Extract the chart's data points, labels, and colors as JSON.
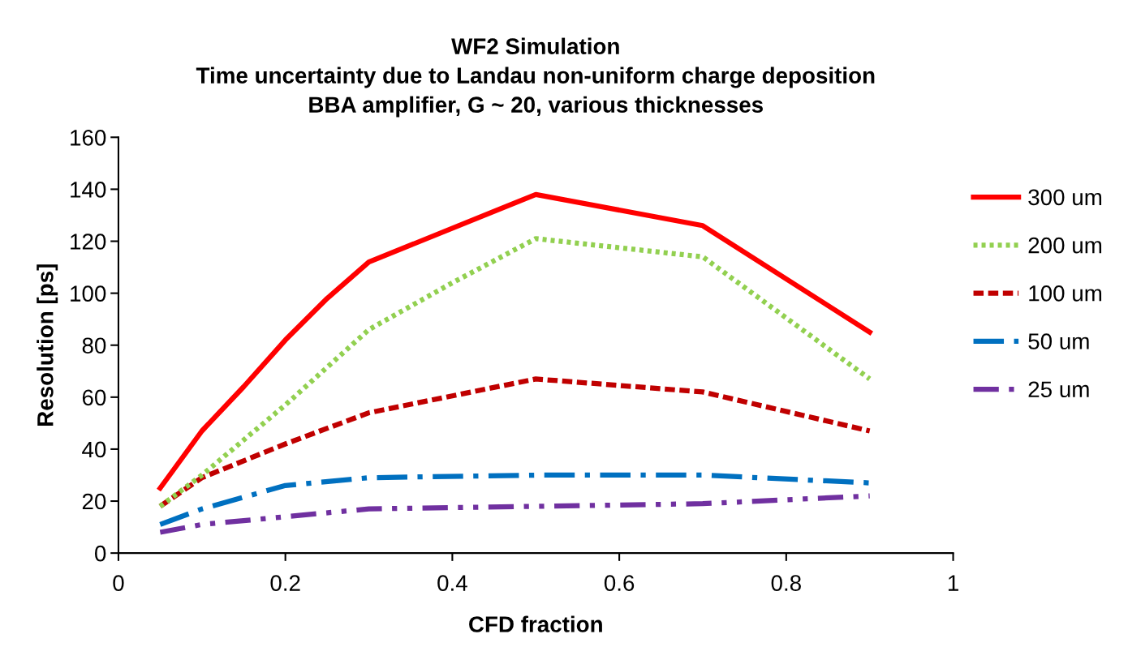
{
  "chart_data": {
    "type": "line",
    "title": "WF2 Simulation\nTime uncertainty due to Landau non-uniform charge deposition\nBBA amplifier, G ~ 20, various thicknesses",
    "xlabel": "CFD fraction",
    "ylabel": "Resolution [ps]",
    "xlim": [
      0,
      1
    ],
    "xticks": [
      0,
      0.2,
      0.4,
      0.6,
      0.8,
      1
    ],
    "ylim": [
      0,
      160
    ],
    "yticks": [
      0,
      20,
      40,
      60,
      80,
      100,
      120,
      140,
      160
    ],
    "grid": false,
    "legend": "right",
    "marker": "none",
    "series": [
      {
        "name": "300 um",
        "color": "#ff0000",
        "line_style": "solid",
        "x": [
          0.05,
          0.1,
          0.15,
          0.2,
          0.25,
          0.3,
          0.5,
          0.7,
          0.9
        ],
        "values": [
          25,
          47,
          64,
          82,
          98,
          112,
          138,
          126,
          85
        ]
      },
      {
        "name": "200 um",
        "color": "#92d050",
        "line_style": "dotted",
        "x": [
          0.05,
          0.1,
          0.2,
          0.3,
          0.4,
          0.5,
          0.7,
          0.9
        ],
        "values": [
          18,
          30,
          57,
          86,
          104,
          121,
          114,
          67
        ]
      },
      {
        "name": "100 um",
        "color": "#c00000",
        "line_style": "dashed",
        "x": [
          0.05,
          0.1,
          0.2,
          0.3,
          0.5,
          0.7,
          0.9
        ],
        "values": [
          18,
          29,
          42,
          54,
          67,
          62,
          47
        ]
      },
      {
        "name": "50 um ",
        "color": "#0070c0",
        "line_style": "dashdot",
        "x": [
          0.05,
          0.1,
          0.2,
          0.3,
          0.5,
          0.7,
          0.9
        ],
        "values": [
          11,
          17,
          26,
          29,
          30,
          30,
          27
        ]
      },
      {
        "name": "25 um",
        "color": "#7030a0",
        "line_style": "longdashdot",
        "x": [
          0.05,
          0.1,
          0.2,
          0.3,
          0.5,
          0.7,
          0.9
        ],
        "values": [
          8,
          11,
          14,
          17,
          18,
          19,
          22
        ]
      }
    ]
  }
}
